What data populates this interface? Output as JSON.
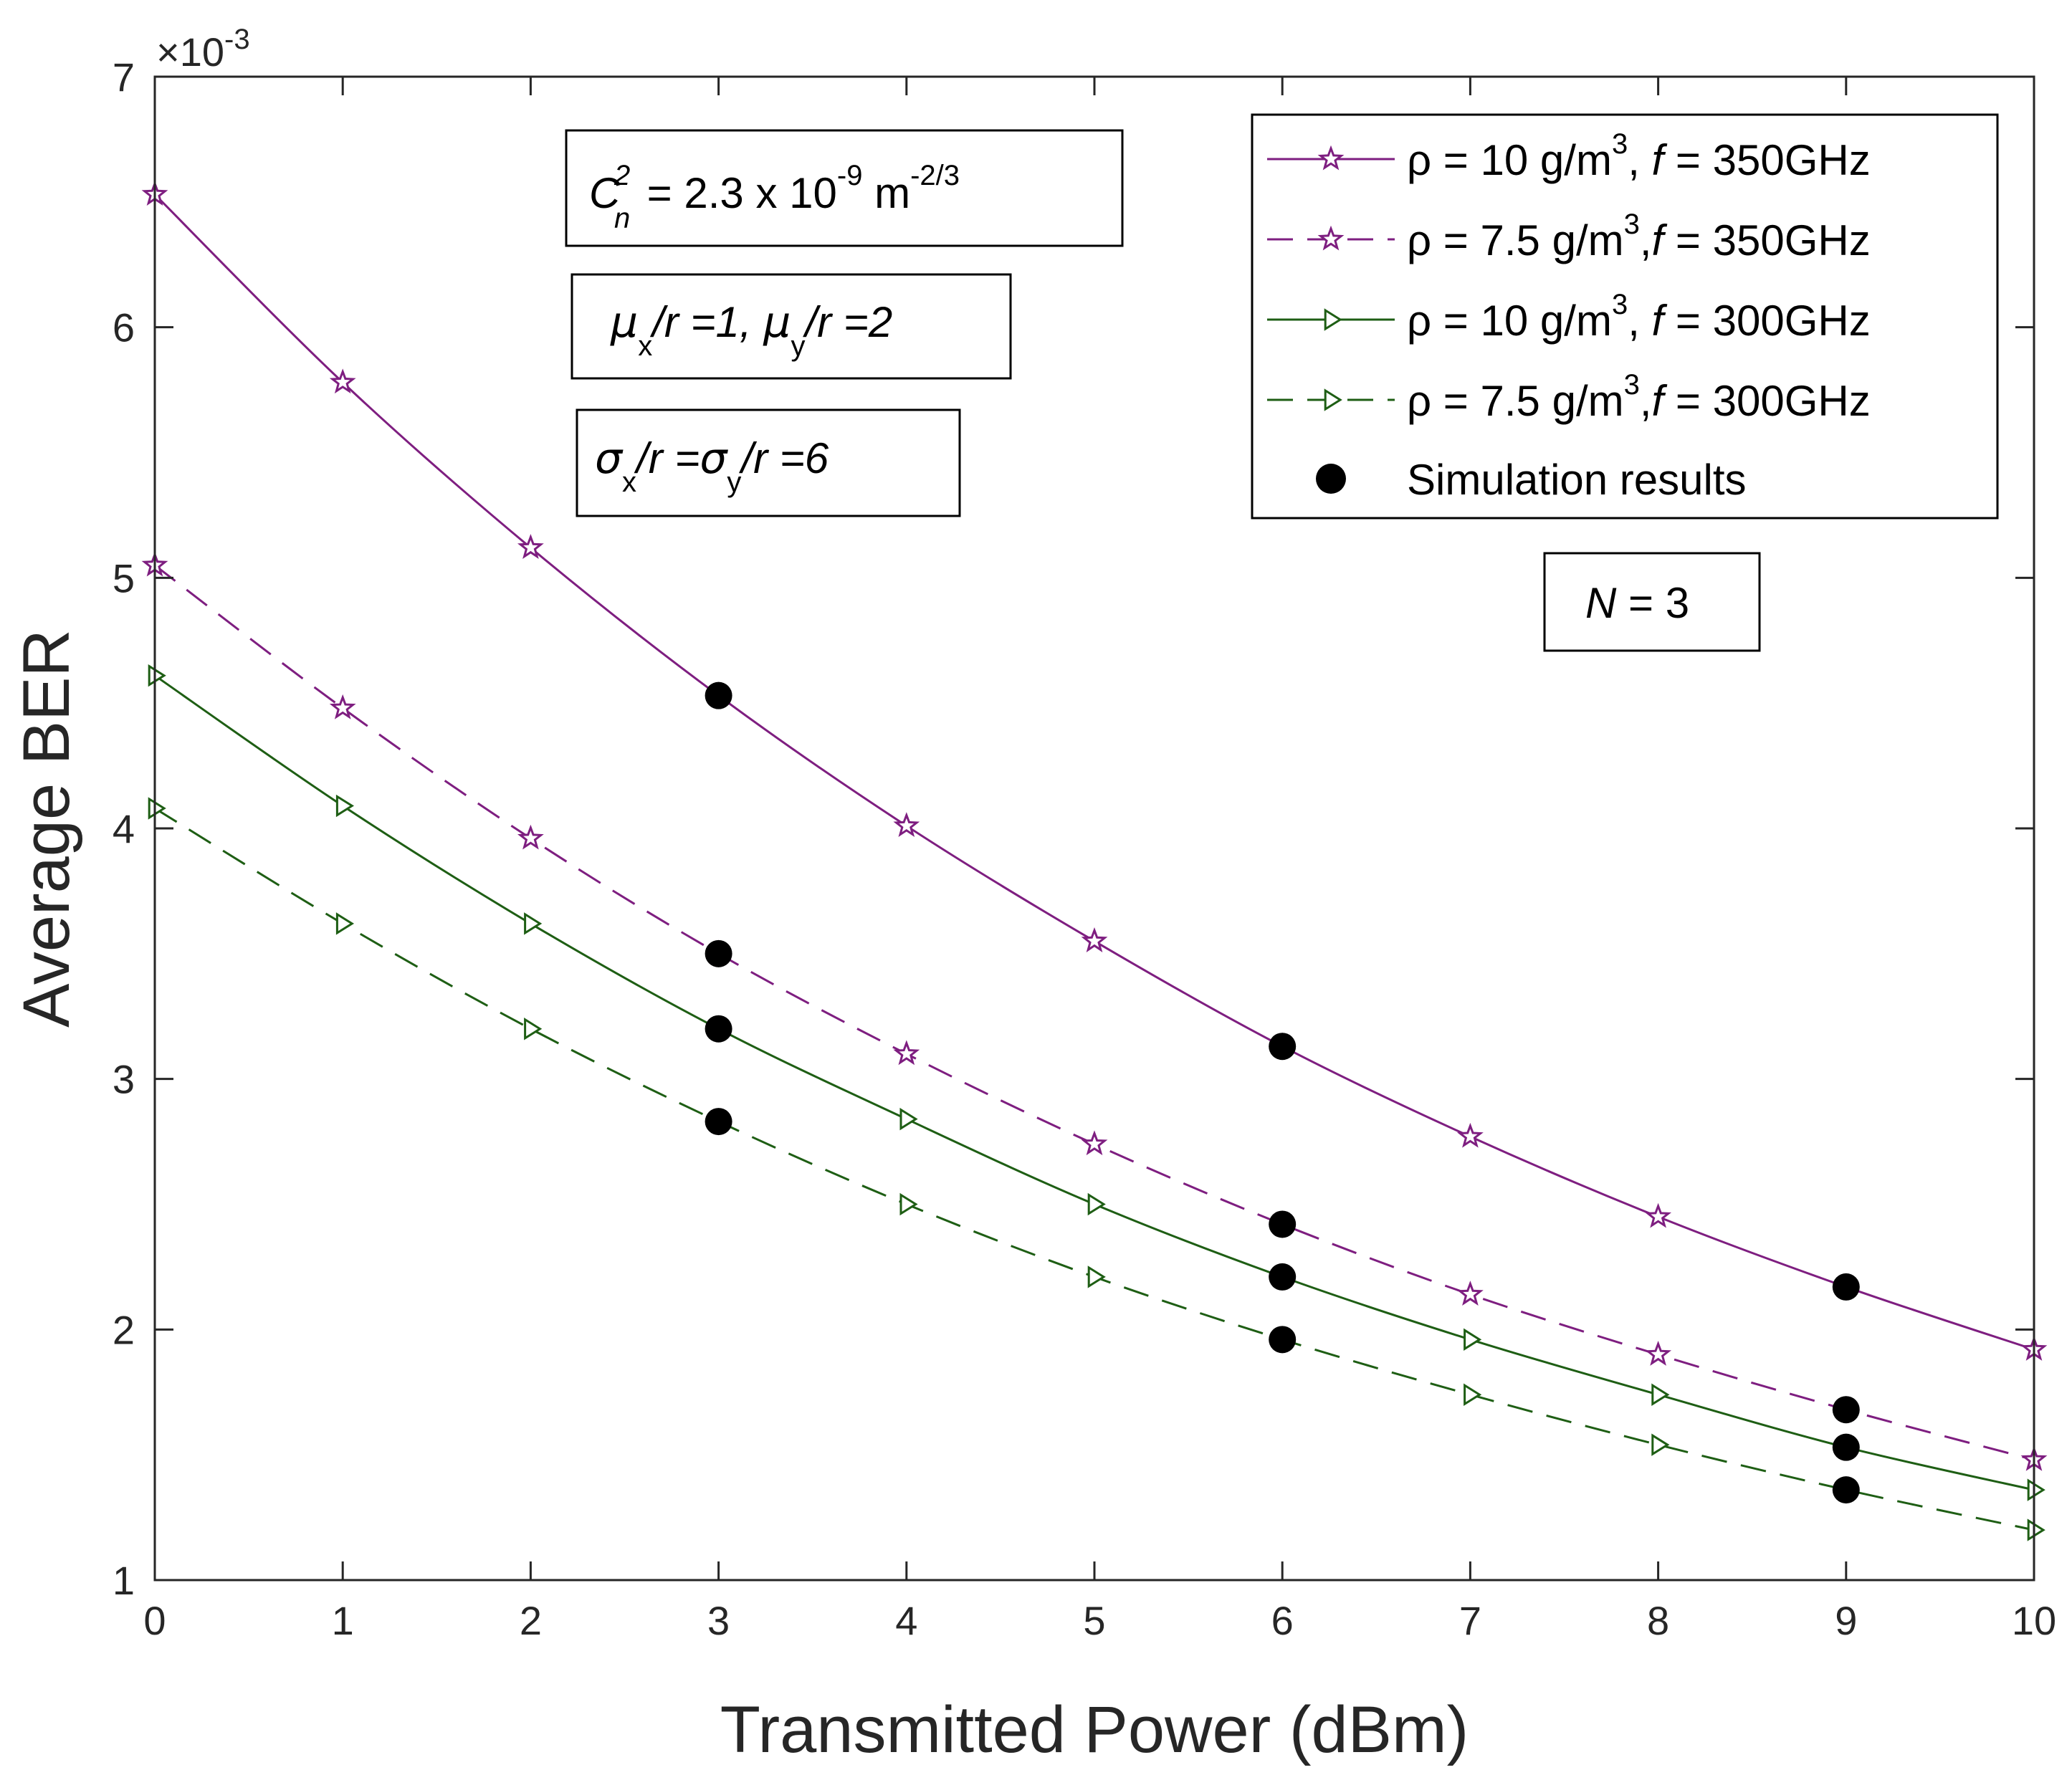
{
  "chart_data": {
    "type": "line",
    "title": "",
    "xlabel": "Transmitted Power (dBm)",
    "ylabel": "Average BER",
    "xlim": [
      0,
      10
    ],
    "ylim": [
      1,
      7
    ],
    "y_exponent_label": "×10",
    "y_exponent_power": "-3",
    "x": [
      0,
      1,
      2,
      3,
      4,
      5,
      6,
      7,
      8,
      9,
      10
    ],
    "x_ticks": [
      "0",
      "1",
      "2",
      "3",
      "4",
      "5",
      "6",
      "7",
      "8",
      "9",
      "10"
    ],
    "y_ticks": [
      "1",
      "2",
      "3",
      "4",
      "5",
      "6",
      "7"
    ],
    "series": [
      {
        "name": "ρ = 10 g/m³, f = 350GHz",
        "legend": {
          "pre": "ρ = 10 g/m",
          "sup": "3",
          "mid": ", ",
          "ital": "f",
          "post": " = 350GHz"
        },
        "color": "#7e1e80",
        "dash": "solid",
        "marker": "star",
        "values": [
          6.53,
          5.78,
          5.12,
          4.53,
          4.01,
          3.55,
          3.13,
          2.77,
          2.45,
          2.17,
          1.92
        ]
      },
      {
        "name": "ρ = 7.5 g/m³, f = 350GHz",
        "legend": {
          "pre": "ρ = 7.5 g/m",
          "sup": "3",
          "mid": ",",
          "ital": "f",
          "post": " = 350GHz"
        },
        "color": "#7e1e80",
        "dash": "dashed",
        "marker": "star",
        "values": [
          5.05,
          4.48,
          3.96,
          3.5,
          3.1,
          2.74,
          2.42,
          2.14,
          1.9,
          1.68,
          1.48
        ]
      },
      {
        "name": "ρ = 10 g/m³, f = 300GHz",
        "legend": {
          "pre": "ρ = 10 g/m",
          "sup": "3",
          "mid": ", ",
          "ital": "f",
          "post": " = 300GHz"
        },
        "color": "#1e5e14",
        "dash": "solid",
        "marker": "triangle-right",
        "values": [
          4.61,
          4.09,
          3.62,
          3.2,
          2.84,
          2.5,
          2.21,
          1.96,
          1.74,
          1.53,
          1.36
        ]
      },
      {
        "name": "ρ = 7.5 g/m³, f = 300GHz",
        "legend": {
          "pre": "ρ = 7.5 g/m",
          "sup": "3",
          "mid": ",",
          "ital": "f",
          "post": " = 300GHz"
        },
        "color": "#1e5e14",
        "dash": "dashed",
        "marker": "triangle-right",
        "values": [
          4.08,
          3.62,
          3.2,
          2.83,
          2.5,
          2.21,
          1.96,
          1.74,
          1.54,
          1.36,
          1.2
        ]
      }
    ],
    "simulation": {
      "name": "Simulation results",
      "color": "#000000",
      "x": [
        3,
        6,
        9
      ],
      "series_values": [
        [
          4.53,
          3.13,
          2.17
        ],
        [
          3.5,
          2.42,
          1.68
        ],
        [
          3.2,
          2.21,
          1.53
        ],
        [
          2.83,
          1.96,
          1.36
        ]
      ]
    },
    "annotations": {
      "cn2": {
        "base": "C",
        "sup": "2",
        "sub": "n",
        "text": " = 2.3 x 10",
        "exp1": "-9",
        "unit": " m",
        "exp2": "-2/3"
      },
      "mu": {
        "sym1": "μ",
        "sub1": "x",
        "txt1": "/r =1, ",
        "sym2": "μ",
        "sub2": "y",
        "txt2": "/r =2"
      },
      "sigma": {
        "sym1": "σ",
        "sub1": "x",
        "txt1": "/r =",
        "sym2": "σ",
        "sub2": "y",
        "txt2": "/r =6"
      },
      "n": {
        "ital": "N",
        "text": " = 3"
      }
    },
    "grid": false,
    "legend_position": "top-right"
  }
}
